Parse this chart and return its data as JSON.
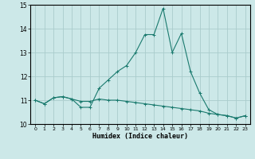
{
  "xlabel": "Humidex (Indice chaleur)",
  "xlim": [
    -0.5,
    23.5
  ],
  "ylim": [
    10,
    15
  ],
  "yticks": [
    10,
    11,
    12,
    13,
    14,
    15
  ],
  "xticks": [
    0,
    1,
    2,
    3,
    4,
    5,
    6,
    7,
    8,
    9,
    10,
    11,
    12,
    13,
    14,
    15,
    16,
    17,
    18,
    19,
    20,
    21,
    22,
    23
  ],
  "bg_color": "#cce8e8",
  "grid_color": "#aacccc",
  "line_color": "#1a7a6e",
  "line1_x": [
    0,
    1,
    2,
    3,
    4,
    5,
    6,
    7,
    8,
    9,
    10,
    11,
    12,
    13,
    14,
    15,
    16,
    17,
    18,
    19,
    20,
    21,
    22,
    23
  ],
  "line1_y": [
    11.0,
    10.85,
    11.1,
    11.15,
    11.05,
    10.95,
    10.95,
    11.05,
    11.0,
    11.0,
    10.95,
    10.9,
    10.85,
    10.8,
    10.75,
    10.7,
    10.65,
    10.6,
    10.55,
    10.45,
    10.4,
    10.35,
    10.25,
    10.35
  ],
  "line2_x": [
    0,
    1,
    2,
    3,
    4,
    5,
    6,
    7,
    8,
    9,
    10,
    11,
    12,
    13,
    14,
    15,
    16,
    17,
    18,
    19,
    20,
    21,
    22,
    23
  ],
  "line2_y": [
    11.0,
    10.85,
    11.1,
    11.15,
    11.05,
    10.7,
    10.7,
    11.5,
    11.85,
    12.2,
    12.45,
    13.0,
    13.75,
    13.75,
    14.85,
    13.0,
    13.8,
    12.2,
    11.3,
    10.6,
    10.4,
    10.35,
    10.25,
    10.35
  ]
}
